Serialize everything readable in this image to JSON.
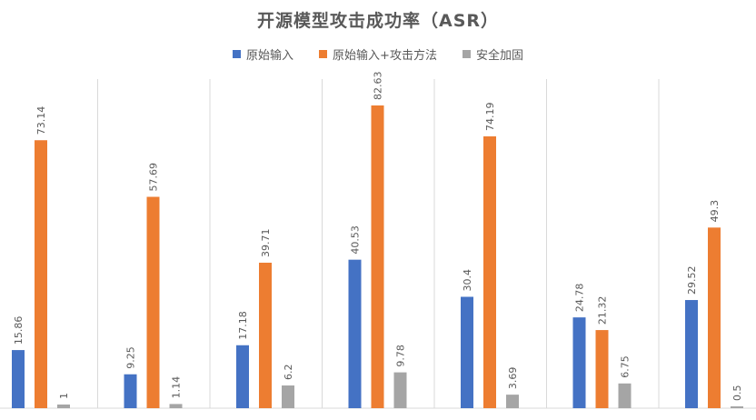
{
  "chart_data": {
    "type": "bar",
    "title": "开源模型攻击成功率（ASR）",
    "categories": [
      "",
      "",
      "",
      "",
      "",
      "",
      ""
    ],
    "series": [
      {
        "name": "原始输入",
        "color": "#4472C4",
        "values": [
          15.86,
          9.25,
          17.18,
          40.53,
          30.4,
          24.78,
          29.52
        ],
        "labels": [
          "15.86",
          "9.25",
          "17.18",
          "40.53",
          "30.4",
          "24.78",
          "29.52"
        ]
      },
      {
        "name": "原始输入+攻击方法",
        "color": "#ED7D31",
        "values": [
          73.14,
          57.69,
          39.71,
          82.63,
          74.19,
          21.32,
          49.3
        ],
        "labels": [
          "73.14",
          "57.69",
          "39.71",
          "82.63",
          "74.19",
          "21.32",
          "49.3"
        ]
      },
      {
        "name": "安全加固",
        "color": "#A5A5A5",
        "values": [
          1,
          1.14,
          6.2,
          9.78,
          3.69,
          6.75,
          0.5
        ],
        "labels": [
          "1",
          "1.14",
          "6.2",
          "9.78",
          "3.69",
          "6.75",
          "0.5"
        ]
      }
    ],
    "ylim": [
      0,
      85
    ],
    "xlabel": "",
    "ylabel": "",
    "legend_position": "top",
    "grid": "vertical separators between groups"
  }
}
